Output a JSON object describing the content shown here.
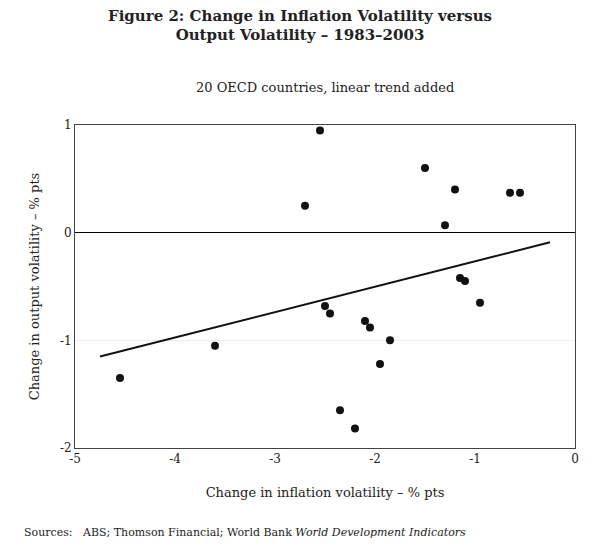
{
  "chart_data": {
    "type": "scatter",
    "title": "Figure 2: Change in Inflation Volatility versus\nOutput Volatility – 1983–2003",
    "subtitle": "20 OECD countries, linear trend added",
    "xlabel": "Change in inflation volatility – % pts",
    "ylabel": "Change in output volatility – % pts",
    "source": [
      "Sources:   ABS; Thomson Financial; World Bank ",
      "World Development Indicators"
    ],
    "xlim": [
      -5,
      0
    ],
    "ylim": [
      -2,
      1
    ],
    "xticks": [
      -5,
      -4,
      -3,
      -2,
      -1,
      0
    ],
    "yticks": [
      -2,
      -1,
      0,
      1
    ],
    "grid": "y",
    "series": [
      {
        "type": "scatter",
        "marker": "circle",
        "color": "#111111",
        "x": [
          -4.55,
          -3.6,
          -2.7,
          -2.55,
          -2.5,
          -2.45,
          -2.35,
          -2.2,
          -2.1,
          -2.05,
          -1.95,
          -1.85,
          -1.5,
          -1.3,
          -1.2,
          -1.15,
          -1.1,
          -0.95,
          -0.65,
          -0.55
        ],
        "values": [
          -1.35,
          -1.05,
          0.25,
          0.95,
          -0.68,
          -0.75,
          -1.65,
          -1.82,
          -0.82,
          -0.88,
          -1.22,
          -1.0,
          0.6,
          0.07,
          0.4,
          -0.42,
          -0.45,
          -0.65,
          0.37,
          0.37
        ]
      },
      {
        "type": "line",
        "line_style": "solid",
        "color": "#111111",
        "x": [
          -4.75,
          -0.25
        ],
        "values": [
          -1.151,
          -0.089
        ]
      }
    ]
  }
}
